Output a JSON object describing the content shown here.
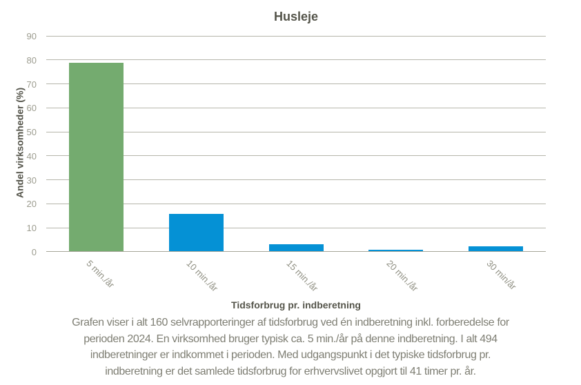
{
  "title": "Husleje",
  "chart_data": {
    "type": "bar",
    "title": "Husleje",
    "xlabel": "Tidsforbrug pr. indberetning",
    "ylabel": "Andel virksomheder (%)",
    "categories": [
      "5 min./år",
      "10 min./år",
      "15 min./år",
      "20 min./år",
      "30 min/år"
    ],
    "values": [
      78.5,
      15.5,
      3.0,
      0.6,
      1.9
    ],
    "bar_colors": [
      "#74ab6f",
      "#0591d5",
      "#0591d5",
      "#0591d5",
      "#0591d5"
    ],
    "ylim": [
      0,
      90
    ],
    "yticks": [
      0,
      10,
      20,
      30,
      40,
      50,
      60,
      70,
      80,
      90
    ],
    "grid": true,
    "legend_position": "none",
    "x_tick_rotation_deg": 45
  },
  "colors": {
    "highlight_bar": "#74ab6f",
    "default_bar": "#0591d5",
    "gridline": "#b5b5aa",
    "axis_line": "#a6a699",
    "dark_text": "#54544a",
    "tick_text": "#9c9c8f",
    "caption_text": "#7e7e73"
  },
  "caption": {
    "lines": [
      "Grafen viser i alt 160 selvrapporteringer af tidsforbrug ved én indberetning inkl. forberedelse for",
      "perioden 2024. En virksomhed bruger typisk ca. 5 min./år på denne indberetning. I alt 494",
      "indberetninger er indkommet i perioden. Med udgangspunkt i det typiske tidsforbrug pr.",
      "indberetning er det samlede tidsforbrug for erhvervslivet opgjort til 41 timer pr. år."
    ]
  }
}
